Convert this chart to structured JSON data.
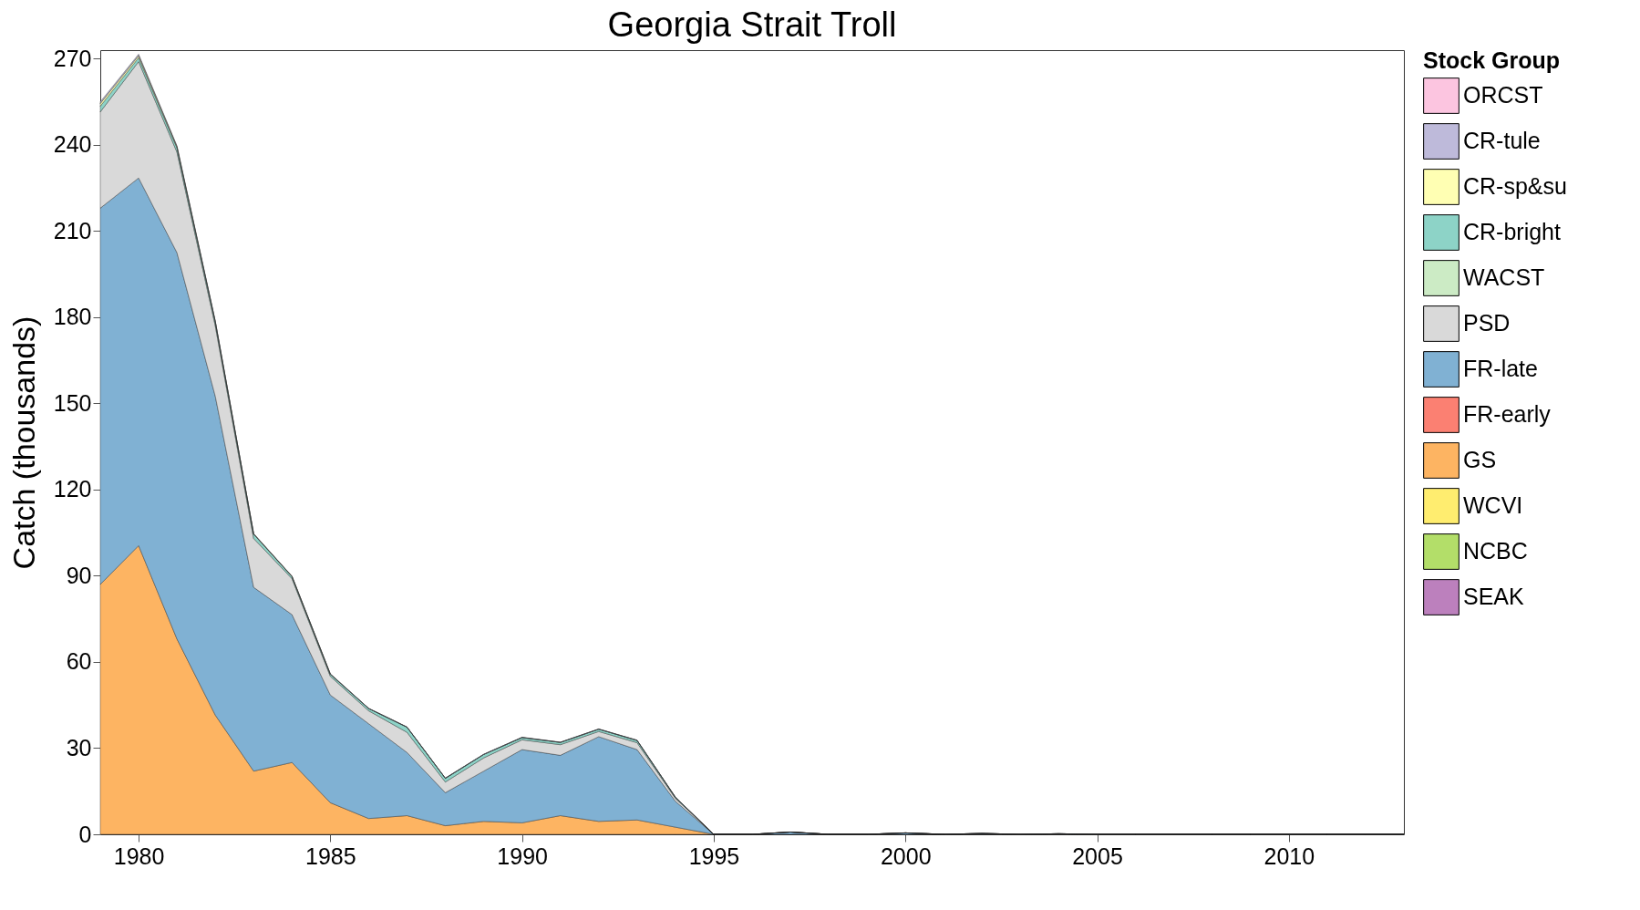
{
  "chart_data": {
    "type": "area",
    "title": "Georgia Strait Troll",
    "ylabel": "Catch (thousands)",
    "legend_title": "Stock Group",
    "stacked": true,
    "legend": "right",
    "grid": false,
    "x": [
      1979,
      1980,
      1981,
      1982,
      1983,
      1984,
      1985,
      1986,
      1987,
      1988,
      1989,
      1990,
      1991,
      1992,
      1993,
      1994,
      1995,
      1996,
      1997,
      1998,
      1999,
      2000,
      2001,
      2002,
      2003,
      2004,
      2005,
      2006,
      2007,
      2008,
      2009,
      2010,
      2011,
      2012,
      2013
    ],
    "xlim": [
      1979,
      2013
    ],
    "xticks": [
      1980,
      1985,
      1990,
      1995,
      2000,
      2005,
      2010
    ],
    "ylim": [
      0,
      273
    ],
    "yticks": [
      0,
      30,
      60,
      90,
      120,
      150,
      180,
      210,
      240,
      270
    ],
    "series": [
      {
        "name": "SEAK",
        "color": "#bc80bd",
        "values": [
          null,
          null,
          null,
          null,
          null,
          null,
          null,
          null,
          null,
          null,
          null,
          null,
          null,
          null,
          null,
          null,
          null,
          null,
          null,
          null,
          null,
          null,
          null,
          null,
          null,
          null,
          null,
          null,
          null,
          null,
          null,
          null,
          null,
          null,
          null
        ]
      },
      {
        "name": "NCBC",
        "color": "#b3de69",
        "values": [
          null,
          null,
          null,
          null,
          null,
          null,
          null,
          null,
          null,
          null,
          null,
          null,
          null,
          null,
          null,
          null,
          null,
          null,
          null,
          null,
          null,
          null,
          null,
          null,
          null,
          null,
          null,
          null,
          null,
          null,
          null,
          null,
          null,
          null,
          null
        ]
      },
      {
        "name": "WCVI",
        "color": "#ffed6f",
        "values": [
          null,
          null,
          null,
          null,
          null,
          null,
          null,
          null,
          null,
          null,
          null,
          null,
          null,
          null,
          null,
          null,
          null,
          null,
          null,
          null,
          null,
          null,
          null,
          null,
          null,
          null,
          null,
          null,
          null,
          null,
          null,
          null,
          null,
          null,
          null
        ]
      },
      {
        "name": "GS",
        "color": "#fdb462",
        "values": [
          87,
          100.5,
          68,
          41.5,
          22,
          25,
          11,
          5.5,
          6.5,
          3,
          4.5,
          4,
          6.5,
          4.5,
          5,
          2.5,
          0,
          0,
          0,
          0,
          0,
          0,
          0,
          0,
          0,
          0,
          0,
          0,
          0,
          0,
          0,
          0,
          0,
          0,
          0
        ]
      },
      {
        "name": "FR-early",
        "color": "#fb8072",
        "values": [
          null,
          null,
          null,
          null,
          null,
          null,
          null,
          null,
          null,
          null,
          null,
          null,
          null,
          null,
          null,
          null,
          null,
          null,
          null,
          null,
          null,
          null,
          null,
          null,
          null,
          null,
          null,
          null,
          null,
          null,
          null,
          null,
          null,
          null,
          null
        ]
      },
      {
        "name": "FR-late",
        "color": "#80b1d3",
        "values": [
          131,
          128,
          134.5,
          111,
          64,
          51.5,
          37.5,
          33,
          22,
          11.5,
          17.5,
          25.5,
          21,
          29.5,
          24.5,
          9,
          0,
          0,
          0.8,
          0,
          0,
          0.5,
          0,
          0.3,
          0,
          0.2,
          0,
          0,
          0,
          0,
          0,
          0,
          0,
          0,
          0
        ]
      },
      {
        "name": "PSD",
        "color": "#d9d9d9",
        "values": [
          33.5,
          40.5,
          35,
          24.5,
          17,
          12.5,
          6.5,
          4.5,
          7,
          3.7,
          4.6,
          3.4,
          3.7,
          1.8,
          2.4,
          1,
          0,
          0,
          0,
          0,
          0,
          0,
          0,
          0,
          0,
          0,
          0,
          0,
          0,
          0,
          0,
          0,
          0,
          0,
          0
        ]
      },
      {
        "name": "WACST",
        "color": "#ccebc5",
        "values": [
          null,
          null,
          null,
          null,
          null,
          null,
          null,
          null,
          null,
          null,
          null,
          null,
          null,
          null,
          null,
          null,
          null,
          null,
          null,
          null,
          null,
          null,
          null,
          null,
          null,
          null,
          null,
          null,
          null,
          null,
          null,
          null,
          null,
          null,
          null
        ]
      },
      {
        "name": "CR-bright",
        "color": "#8dd3c7",
        "values": [
          2,
          1.4,
          1.5,
          1.3,
          1.5,
          0.7,
          0.7,
          0.8,
          1.8,
          1.3,
          1.2,
          0.8,
          0.8,
          0.8,
          0.8,
          0.4,
          0,
          0,
          0,
          0,
          0,
          0,
          0,
          0,
          0,
          0,
          0,
          0,
          0,
          0,
          0,
          0,
          0,
          0,
          0
        ]
      },
      {
        "name": "CR-sp&su",
        "color": "#ffffb3",
        "values": [
          0.9,
          0.7,
          0.4,
          0.2,
          0.1,
          0.1,
          0.1,
          0,
          0,
          0,
          0,
          0,
          0,
          0,
          0,
          0,
          0,
          0,
          0,
          0,
          0,
          0,
          0,
          0,
          0,
          0,
          0,
          0,
          0,
          0,
          0,
          0,
          0,
          0,
          0
        ]
      },
      {
        "name": "CR-tule",
        "color": "#bebada",
        "values": [
          0.6,
          0.5,
          0.3,
          0.2,
          0.1,
          0.1,
          0.1,
          0.1,
          0.1,
          0.1,
          0.1,
          0.1,
          0.1,
          0.1,
          0.1,
          0.1,
          0,
          0,
          0,
          0,
          0,
          0,
          0,
          0,
          0,
          0,
          0,
          0,
          0,
          0,
          0,
          0,
          0,
          0,
          0
        ]
      },
      {
        "name": "ORCST",
        "color": "#fcc5e0",
        "values": [
          null,
          null,
          null,
          null,
          null,
          null,
          null,
          null,
          null,
          null,
          null,
          null,
          null,
          null,
          null,
          null,
          null,
          null,
          null,
          null,
          null,
          null,
          null,
          null,
          null,
          null,
          null,
          null,
          null,
          null,
          null,
          null,
          null,
          null,
          null
        ]
      }
    ]
  }
}
